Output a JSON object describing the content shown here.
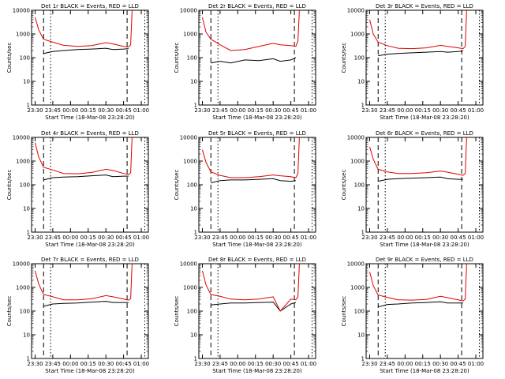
{
  "figure": {
    "rows": 3,
    "cols": 3
  },
  "colors": {
    "events": "#000000",
    "lld": "#e00000",
    "axis": "#000000"
  },
  "chart_data": [
    {
      "type": "line",
      "title": "Det 1r BLACK = Events, RED = LLD",
      "xlabel": "Start Time (18-Mar-08 23:28:20)",
      "ylabel": "Counts/sec",
      "yscale": "log",
      "ylim": [
        1,
        10000
      ],
      "xticks": [
        "23:30",
        "23:45",
        "00:00",
        "00:15",
        "00:30",
        "00:45",
        "01:00"
      ],
      "yticks": [
        "1",
        "10",
        "100",
        "1000",
        "10000"
      ],
      "x_hours": [
        0,
        0.05,
        0.12,
        0.25,
        0.4,
        0.6,
        0.8,
        1.0,
        1.1,
        1.25,
        1.32,
        1.35,
        1.37,
        1.55
      ],
      "series": [
        {
          "name": "BLACK = Events",
          "values": [
            null,
            null,
            150,
            180,
            200,
            220,
            230,
            250,
            220,
            230,
            240,
            null,
            null,
            null
          ]
        },
        {
          "name": "RED = LLD",
          "values": [
            5000,
            1500,
            600,
            450,
            330,
            300,
            320,
            430,
            380,
            300,
            280,
            350,
            10000,
            null
          ]
        }
      ],
      "markers": {
        "dashed_hours": [
          0.12,
          1.3
        ],
        "dotted_hours": [
          0.22,
          1.55
        ]
      }
    },
    {
      "type": "line",
      "title": "Det 2r BLACK = Events, RED = LLD",
      "xlabel": "Start Time (18-Mar-08 23:28:20)",
      "ylabel": "Counts/sec",
      "yscale": "log",
      "ylim": [
        1,
        10000
      ],
      "xticks": [
        "23:30",
        "23:45",
        "00:00",
        "00:15",
        "00:30",
        "00:45",
        "01:00"
      ],
      "yticks": [
        "1",
        "10",
        "100",
        "1000",
        "10000"
      ],
      "x_hours": [
        0,
        0.05,
        0.12,
        0.25,
        0.4,
        0.6,
        0.8,
        1.0,
        1.1,
        1.25,
        1.32,
        1.35,
        1.37,
        1.55
      ],
      "series": [
        {
          "name": "BLACK = Events",
          "values": [
            null,
            null,
            60,
            70,
            60,
            80,
            75,
            90,
            70,
            80,
            100,
            null,
            null,
            null
          ]
        },
        {
          "name": "RED = LLD",
          "values": [
            5000,
            1200,
            600,
            350,
            200,
            220,
            300,
            400,
            350,
            320,
            300,
            500,
            10000,
            null
          ]
        }
      ],
      "markers": {
        "dashed_hours": [
          0.12,
          1.3
        ],
        "dotted_hours": [
          0.22,
          1.55
        ]
      }
    },
    {
      "type": "line",
      "title": "Det 3r BLACK = Events, RED = LLD",
      "xlabel": "Start Time (18-Mar-08 23:28:20)",
      "ylabel": "Counts/sec",
      "yscale": "log",
      "ylim": [
        1,
        10000
      ],
      "xticks": [
        "23:30",
        "23:45",
        "00:00",
        "00:15",
        "00:30",
        "00:45",
        "01:00"
      ],
      "yticks": [
        "1",
        "10",
        "100",
        "1000",
        "10000"
      ],
      "x_hours": [
        0,
        0.05,
        0.12,
        0.25,
        0.4,
        0.6,
        0.8,
        1.0,
        1.1,
        1.25,
        1.32,
        1.35,
        1.37,
        1.55
      ],
      "series": [
        {
          "name": "BLACK = Events",
          "values": [
            null,
            null,
            120,
            140,
            150,
            160,
            170,
            180,
            170,
            180,
            190,
            null,
            null,
            null
          ]
        },
        {
          "name": "RED = LLD",
          "values": [
            4000,
            1000,
            450,
            320,
            250,
            240,
            260,
            330,
            300,
            260,
            240,
            300,
            10000,
            null
          ]
        }
      ],
      "markers": {
        "dashed_hours": [
          0.12,
          1.3
        ],
        "dotted_hours": [
          0.22,
          1.55
        ]
      }
    },
    {
      "type": "line",
      "title": "Det 4r BLACK = Events, RED = LLD",
      "xlabel": "Start Time (18-Mar-08 23:28:20)",
      "ylabel": "Counts/sec",
      "yscale": "log",
      "ylim": [
        1,
        10000
      ],
      "xticks": [
        "23:30",
        "23:45",
        "00:00",
        "00:15",
        "00:30",
        "00:45",
        "01:00"
      ],
      "yticks": [
        "1",
        "10",
        "100",
        "1000",
        "10000"
      ],
      "x_hours": [
        0,
        0.05,
        0.12,
        0.25,
        0.4,
        0.6,
        0.8,
        1.0,
        1.1,
        1.25,
        1.32,
        1.35,
        1.37,
        1.55
      ],
      "series": [
        {
          "name": "BLACK = Events",
          "values": [
            null,
            null,
            160,
            200,
            210,
            220,
            240,
            260,
            220,
            230,
            230,
            null,
            null,
            null
          ]
        },
        {
          "name": "RED = LLD",
          "values": [
            6000,
            1500,
            550,
            420,
            300,
            290,
            330,
            450,
            400,
            300,
            270,
            320,
            10000,
            null
          ]
        }
      ],
      "markers": {
        "dashed_hours": [
          0.12,
          1.3
        ],
        "dotted_hours": [
          0.22,
          1.55
        ]
      }
    },
    {
      "type": "line",
      "title": "Det 5r BLACK = Events, RED = LLD",
      "xlabel": "Start Time (18-Mar-08 23:28:20)",
      "ylabel": "Counts/sec",
      "yscale": "log",
      "ylim": [
        1,
        10000
      ],
      "xticks": [
        "23:30",
        "23:45",
        "00:00",
        "00:15",
        "00:30",
        "00:45",
        "01:00"
      ],
      "yticks": [
        "1",
        "10",
        "100",
        "1000",
        "10000"
      ],
      "x_hours": [
        0,
        0.05,
        0.12,
        0.25,
        0.4,
        0.6,
        0.8,
        1.0,
        1.1,
        1.25,
        1.32,
        1.35,
        1.37,
        1.55
      ],
      "series": [
        {
          "name": "BLACK = Events",
          "values": [
            null,
            null,
            120,
            150,
            160,
            160,
            170,
            180,
            150,
            140,
            150,
            null,
            null,
            null
          ]
        },
        {
          "name": "RED = LLD",
          "values": [
            3000,
            900,
            350,
            250,
            200,
            200,
            220,
            260,
            240,
            220,
            200,
            300,
            10000,
            null
          ]
        }
      ],
      "markers": {
        "dashed_hours": [
          0.12,
          1.3
        ],
        "dotted_hours": [
          0.22,
          1.55
        ]
      }
    },
    {
      "type": "line",
      "title": "Det 6r BLACK = Events, RED = LLD",
      "xlabel": "Start Time (18-Mar-08 23:28:20)",
      "ylabel": "Counts/sec",
      "yscale": "log",
      "ylim": [
        1,
        10000
      ],
      "xticks": [
        "23:30",
        "23:45",
        "00:00",
        "00:15",
        "00:30",
        "00:45",
        "01:00"
      ],
      "yticks": [
        "1",
        "10",
        "100",
        "1000",
        "10000"
      ],
      "x_hours": [
        0,
        0.05,
        0.12,
        0.25,
        0.4,
        0.6,
        0.8,
        1.0,
        1.1,
        1.25,
        1.32,
        1.35,
        1.37,
        1.55
      ],
      "series": [
        {
          "name": "BLACK = Events",
          "values": [
            null,
            null,
            140,
            170,
            180,
            190,
            200,
            210,
            180,
            170,
            170,
            null,
            null,
            null
          ]
        },
        {
          "name": "RED = LLD",
          "values": [
            4000,
            1200,
            450,
            350,
            300,
            300,
            320,
            380,
            340,
            280,
            250,
            300,
            10000,
            null
          ]
        }
      ],
      "markers": {
        "dashed_hours": [
          0.12,
          1.3
        ],
        "dotted_hours": [
          0.22,
          1.55
        ]
      }
    },
    {
      "type": "line",
      "title": "Det 7r BLACK = Events, RED = LLD",
      "xlabel": "Start Time (18-Mar-08 23:28:20)",
      "ylabel": "Counts/sec",
      "yscale": "log",
      "ylim": [
        1,
        10000
      ],
      "xticks": [
        "23:30",
        "23:45",
        "00:00",
        "00:15",
        "00:30",
        "00:45",
        "01:00"
      ],
      "yticks": [
        "1",
        "10",
        "100",
        "1000",
        "10000"
      ],
      "x_hours": [
        0,
        0.05,
        0.12,
        0.25,
        0.4,
        0.6,
        0.8,
        1.0,
        1.1,
        1.25,
        1.32,
        1.35,
        1.37,
        1.55
      ],
      "series": [
        {
          "name": "BLACK = Events",
          "values": [
            null,
            null,
            160,
            200,
            210,
            220,
            240,
            260,
            230,
            230,
            230,
            null,
            null,
            null
          ]
        },
        {
          "name": "RED = LLD",
          "values": [
            5000,
            1400,
            500,
            400,
            300,
            300,
            330,
            450,
            400,
            320,
            290,
            340,
            10000,
            null
          ]
        }
      ],
      "markers": {
        "dashed_hours": [
          0.12,
          1.3
        ],
        "dotted_hours": [
          0.22,
          1.55
        ]
      }
    },
    {
      "type": "line",
      "title": "Det 8r BLACK = Events, RED = LLD",
      "xlabel": "Start Time (18-Mar-08 23:28:20)",
      "ylabel": "Counts/sec",
      "yscale": "log",
      "ylim": [
        1,
        10000
      ],
      "xticks": [
        "23:30",
        "23:45",
        "00:00",
        "00:15",
        "00:30",
        "00:45",
        "01:00"
      ],
      "yticks": [
        "1",
        "10",
        "100",
        "1000",
        "10000"
      ],
      "x_hours": [
        0,
        0.05,
        0.12,
        0.25,
        0.4,
        0.6,
        0.8,
        1.0,
        1.1,
        1.25,
        1.32,
        1.35,
        1.37,
        1.55
      ],
      "series": [
        {
          "name": "BLACK = Events",
          "values": [
            null,
            null,
            180,
            200,
            220,
            220,
            230,
            240,
            100,
            200,
            230,
            null,
            null,
            null
          ]
        },
        {
          "name": "RED = LLD",
          "values": [
            5000,
            1300,
            500,
            420,
            320,
            300,
            320,
            400,
            100,
            320,
            300,
            400,
            10000,
            null
          ]
        }
      ],
      "markers": {
        "dashed_hours": [
          0.12,
          1.3
        ],
        "dotted_hours": [
          0.22,
          1.55
        ]
      }
    },
    {
      "type": "line",
      "title": "Det 9r BLACK = Events, RED = LLD",
      "xlabel": "Start Time (18-Mar-08 23:28:20)",
      "ylabel": "Counts/sec",
      "yscale": "log",
      "ylim": [
        1,
        10000
      ],
      "xticks": [
        "23:30",
        "23:45",
        "00:00",
        "00:15",
        "00:30",
        "00:45",
        "01:00"
      ],
      "yticks": [
        "1",
        "10",
        "100",
        "1000",
        "10000"
      ],
      "x_hours": [
        0,
        0.05,
        0.12,
        0.25,
        0.4,
        0.6,
        0.8,
        1.0,
        1.1,
        1.25,
        1.32,
        1.35,
        1.37,
        1.55
      ],
      "series": [
        {
          "name": "BLACK = Events",
          "values": [
            null,
            null,
            150,
            190,
            200,
            220,
            230,
            250,
            220,
            220,
            220,
            null,
            null,
            null
          ]
        },
        {
          "name": "RED = LLD",
          "values": [
            4500,
            1200,
            480,
            380,
            300,
            290,
            310,
            420,
            370,
            300,
            270,
            320,
            10000,
            null
          ]
        }
      ],
      "markers": {
        "dashed_hours": [
          0.12,
          1.3
        ],
        "dotted_hours": [
          0.22,
          1.55
        ]
      }
    }
  ]
}
